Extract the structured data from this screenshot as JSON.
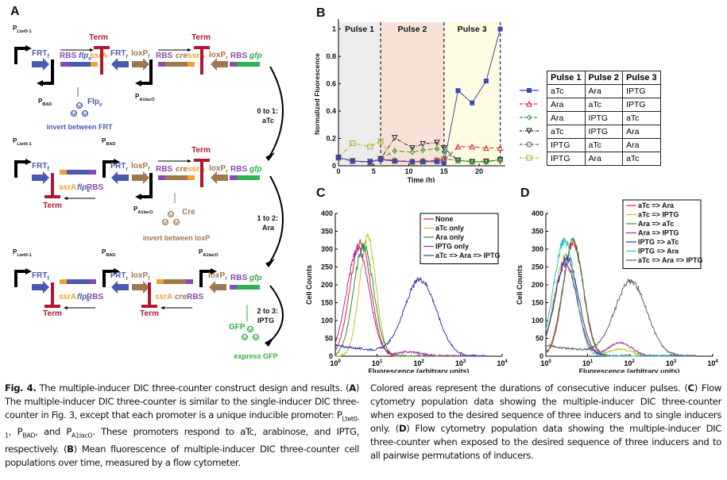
{
  "panels": {
    "a": {
      "letter": "A",
      "rows": [
        {
          "promoters": [
            "PLtet0-1",
            "PBAD",
            "PA1lacO"
          ],
          "labels": {
            "frt_f": "FRTf",
            "rbs1": "RBS",
            "flpe": "flpe",
            "ssra1": "ssrA",
            "term1": "Term",
            "frt_r": "FRTr",
            "loxp_f": "loxPf",
            "rbs2": "RBS",
            "cre": "cre",
            "ssra2": "ssrA",
            "term2": "Term",
            "loxp_r": "loxPr",
            "rbs3": "RBS",
            "gfp": "gfp"
          },
          "protein": {
            "name": "Flpe",
            "action": "invert between FRT"
          }
        },
        {
          "protein": {
            "name": "Cre",
            "action": "invert between loxP"
          }
        },
        {
          "protein": {
            "name": "GFP",
            "action": "express GFP"
          }
        }
      ],
      "transitions": [
        {
          "step": "0 to 1:",
          "inducer": "aTc"
        },
        {
          "step": "1 to 2:",
          "inducer": "Ara"
        },
        {
          "step": "2 to 3:",
          "inducer": "IPTG"
        }
      ],
      "promoter_names": {
        "ltet": "P",
        "ltet_sub": "Ltet0-1",
        "bad": "P",
        "bad_sub": "BAD",
        "a1": "P",
        "a1_sub": "A1lacO"
      },
      "part_labels": {
        "frtf": "FRT",
        "frtf_sub": "f",
        "frtr": "FRT",
        "frtr_sub": "r",
        "loxpf": "loxP",
        "loxpf_sub": "f",
        "loxpr": "loxP",
        "loxpr_sub": "r",
        "rbs": "RBS",
        "flpe": "flp",
        "flpe_sub": "e",
        "cre": "cre",
        "ssra": "ssrA",
        "gfp": "gfp",
        "term": "Term",
        "flpe_protein": "Flp",
        "flpe_protein_sub": "e",
        "cre_protein": "Cre",
        "gfp_protein": "GFP",
        "invert_frt": "invert between FRT",
        "invert_loxp": "invert between loxP",
        "express_gfp": "express GFP"
      }
    },
    "b": {
      "letter": "B"
    },
    "c": {
      "letter": "C"
    },
    "d": {
      "letter": "D"
    }
  },
  "pulse_table": {
    "headers": [
      "Pulse 1",
      "Pulse 2",
      "Pulse 3"
    ],
    "rows": [
      {
        "marker": "square",
        "color": "#3a4aa8",
        "line": "solid",
        "values": [
          "aTc",
          "Ara",
          "IPTG"
        ]
      },
      {
        "marker": "triangle-up",
        "color": "#e0203a",
        "line": "dashed",
        "values": [
          "Ara",
          "aTc",
          "IPTG"
        ]
      },
      {
        "marker": "diamond",
        "color": "#2a9a3a",
        "line": "dashed",
        "values": [
          "Ara",
          "IPTG",
          "aTc"
        ]
      },
      {
        "marker": "triangle-down",
        "color": "#222222",
        "line": "dashdot",
        "values": [
          "aTc",
          "IPTG",
          "Ara"
        ]
      },
      {
        "marker": "circle",
        "color": "#555555",
        "line": "dashdot",
        "values": [
          "IPTG",
          "aTc",
          "Ara"
        ]
      },
      {
        "marker": "square-open",
        "color": "#a8b020",
        "line": "dashdot",
        "values": [
          "IPTG",
          "Ara",
          "aTc"
        ]
      }
    ]
  },
  "chart_data": [
    {
      "id": "B",
      "type": "line",
      "title": "",
      "xlabel": "Time (h)",
      "ylabel": "Normalized Fluorescence",
      "xlim": [
        0,
        23.5
      ],
      "ylim": [
        0,
        1.05
      ],
      "xticks": [
        0,
        5,
        10,
        15,
        20
      ],
      "yticks": [
        0,
        0.2,
        0.4,
        0.6,
        0.8,
        1
      ],
      "ytick_labels": [
        "0",
        "0.2",
        "0.4",
        "0.6",
        "0.8",
        "1"
      ],
      "regions": [
        {
          "label": "Pulse 1",
          "from": 0,
          "to": 6,
          "color": "#ececec",
          "boundary": "#999999"
        },
        {
          "label": "Pulse 2",
          "from": 6,
          "to": 15,
          "color": "#f8e2d8",
          "boundary": "#222222"
        },
        {
          "label": "Pulse 3",
          "from": 15,
          "to": 23,
          "color": "#fdfbe2",
          "boundary": "#222222"
        }
      ],
      "x": [
        0,
        2,
        4.5,
        6,
        8,
        10.5,
        12,
        14,
        15,
        17,
        19,
        21,
        23
      ],
      "series": [
        {
          "name": "aTc/Ara/IPTG",
          "color": "#3a4aa8",
          "marker": "square",
          "dash": "",
          "values": [
            0.06,
            0.035,
            0.03,
            0.045,
            0.035,
            0.03,
            0.03,
            0.03,
            0.015,
            0.55,
            0.46,
            0.62,
            1.0
          ]
        },
        {
          "name": "Ara/aTc/IPTG",
          "color": "#e0203a",
          "marker": "triangle-up",
          "dash": "6,3",
          "values": [
            0.06,
            0.035,
            0.025,
            0.05,
            0.04,
            0.03,
            0.035,
            0.04,
            0.04,
            0.14,
            0.14,
            0.13,
            0.13
          ]
        },
        {
          "name": "Ara/IPTG/aTc",
          "color": "#2a9a3a",
          "marker": "diamond",
          "dash": "6,3",
          "values": [
            0.06,
            0.035,
            0.025,
            0.05,
            0.11,
            0.1,
            0.115,
            0.125,
            0.1,
            0.04,
            0.03,
            0.03,
            0.045
          ]
        },
        {
          "name": "aTc/IPTG/Ara",
          "color": "#222222",
          "marker": "triangle-down",
          "dash": "5,2,1,2",
          "values": [
            0.06,
            0.035,
            0.03,
            0.05,
            0.205,
            0.13,
            0.16,
            0.17,
            0.13,
            0.04,
            0.03,
            0.03,
            0.045
          ]
        },
        {
          "name": "IPTG/aTc/Ara",
          "color": "#666666",
          "marker": "circle",
          "dash": "5,2,1,2",
          "values": [
            0.06,
            0.035,
            0.03,
            0.05,
            0.035,
            0.03,
            0.035,
            0.04,
            0.05,
            0.04,
            0.03,
            0.03,
            0.045
          ]
        },
        {
          "name": "IPTG/Ara/aTc",
          "color": "#a8b020",
          "marker": "square-open",
          "dash": "5,2,1,2",
          "values": [
            0.06,
            0.165,
            0.14,
            0.18,
            0.035,
            0.03,
            0.03,
            0.04,
            0.05,
            0.04,
            0.03,
            0.035,
            0.045
          ]
        }
      ],
      "region_labels": [
        "Pulse 1",
        "Pulse 2",
        "Pulse 3"
      ]
    },
    {
      "id": "C",
      "type": "line",
      "xscale": "log",
      "xlabel": "Fluorescence (arbitrary units)",
      "ylabel": "Cell Counts",
      "xlim": [
        1,
        10000
      ],
      "ylim": [
        0,
        400
      ],
      "xticks": [
        1,
        10,
        100,
        1000,
        10000
      ],
      "xtick_labels": [
        "10^0",
        "10^1",
        "10^2",
        "10^3",
        "10^4"
      ],
      "yticks": [
        0,
        50,
        100,
        150,
        200,
        250,
        300,
        350,
        400
      ],
      "legend_position": "top-right",
      "series": [
        {
          "name": "None",
          "color": "#e0203a",
          "peak_x": 4,
          "peak_y": 320,
          "width": 0.25,
          "tail": 0,
          "secondary": null
        },
        {
          "name": "aTc only",
          "color": "#b8c820",
          "peak_x": 6,
          "peak_y": 330,
          "width": 0.2,
          "tail": 0,
          "secondary": null
        },
        {
          "name": "Ara only",
          "color": "#2a8a3a",
          "peak_x": 4.8,
          "peak_y": 310,
          "width": 0.24,
          "tail": 0,
          "secondary": null
        },
        {
          "name": "IPTG only",
          "color": "#a030a0",
          "peak_x": 3.5,
          "peak_y": 300,
          "width": 0.27,
          "tail": 0,
          "secondary": {
            "x": 60,
            "y": 12,
            "width": 0.3
          }
        },
        {
          "name": "aTc => Ara => IPTG",
          "color": "#3a3aa8",
          "peak_x": 110,
          "peak_y": 215,
          "width": 0.38,
          "tail": 30,
          "secondary": null
        }
      ]
    },
    {
      "id": "D",
      "type": "line",
      "xscale": "log",
      "xlabel": "Fluorescence (arbitrary units)",
      "ylabel": "Cell Counts",
      "xlim": [
        1,
        10000
      ],
      "ylim": [
        0,
        400
      ],
      "xticks": [
        1,
        10,
        100,
        1000,
        10000
      ],
      "xtick_labels": [
        "10^0",
        "10^1",
        "10^2",
        "10^3",
        "10^4"
      ],
      "yticks": [
        0,
        50,
        100,
        150,
        200,
        250,
        300,
        350,
        400
      ],
      "legend_position": "top-right",
      "series": [
        {
          "name": "aTc => Ara",
          "color": "#e0203a",
          "peak_x": 4.5,
          "peak_y": 320,
          "width": 0.24,
          "tail": 0,
          "secondary": null
        },
        {
          "name": "aTc => IPTG",
          "color": "#b8c820",
          "peak_x": 3,
          "peak_y": 280,
          "width": 0.27,
          "tail": 0,
          "secondary": {
            "x": 60,
            "y": 20,
            "width": 0.28
          }
        },
        {
          "name": "Ara => aTc",
          "color": "#2a8a3a",
          "peak_x": 4.5,
          "peak_y": 320,
          "width": 0.25,
          "tail": 0,
          "secondary": null
        },
        {
          "name": "Ara => IPTG",
          "color": "#a030a0",
          "peak_x": 3,
          "peak_y": 260,
          "width": 0.27,
          "tail": 0,
          "secondary": {
            "x": 60,
            "y": 38,
            "width": 0.28
          }
        },
        {
          "name": "IPTG => aTc",
          "color": "#3a3aa8",
          "peak_x": 3.2,
          "peak_y": 275,
          "width": 0.28,
          "tail": 0,
          "secondary": null
        },
        {
          "name": "IPTG => Ara",
          "color": "#30c0c0",
          "peak_x": 2.8,
          "peak_y": 325,
          "width": 0.26,
          "tail": 0,
          "secondary": null
        },
        {
          "name": "aTc => Ara => IPTG",
          "color": "#606060",
          "peak_x": 110,
          "peak_y": 210,
          "width": 0.38,
          "tail": 30,
          "secondary": null
        }
      ]
    }
  ],
  "caption": {
    "left": {
      "fig_label": "Fig. 4.",
      "s1": " The multiple-inducer DIC three-counter construct design and results. (",
      "a": "A",
      "s2": ") The multiple-inducer DIC three-counter is similar to the single-inducer DIC three-counter in Fig. 3, except that each promoter is a unique inducible promoter: P",
      "sub1": "Ltet0-1",
      "s3": ", P",
      "sub2": "BAD",
      "s4": ", and P",
      "sub3": "A1lacO",
      "s5": ". These promoters respond to aTc, arabinose, and IPTG, respectively. (",
      "b": "B",
      "s6": ") Mean fluorescence of multiple-inducer DIC three-counter cell populations over time, measured by a flow cytometer."
    },
    "right": {
      "s1": "Colored areas represent the durations of consecutive inducer pulses. (",
      "c": "C",
      "s2": ") Flow cytometry population data showing the multiple-inducer DIC three-counter when exposed to the desired sequence of three inducers and to single inducers only. (",
      "d": "D",
      "s3": ") Flow cytometry population data showing the multiple-inducer DIC three-counter when exposed to the desired sequence of three inducers and to all pairwise permutations of inducers."
    }
  }
}
